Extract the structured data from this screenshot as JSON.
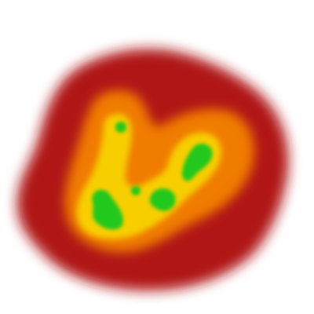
{
  "colors": {
    "background": "#ffffff",
    "outer": "#b01414",
    "middle": "#f07c00",
    "inner": "#f7cf00",
    "core": "#22c81e"
  },
  "image": {
    "subject": "blurred-heat-blob"
  }
}
